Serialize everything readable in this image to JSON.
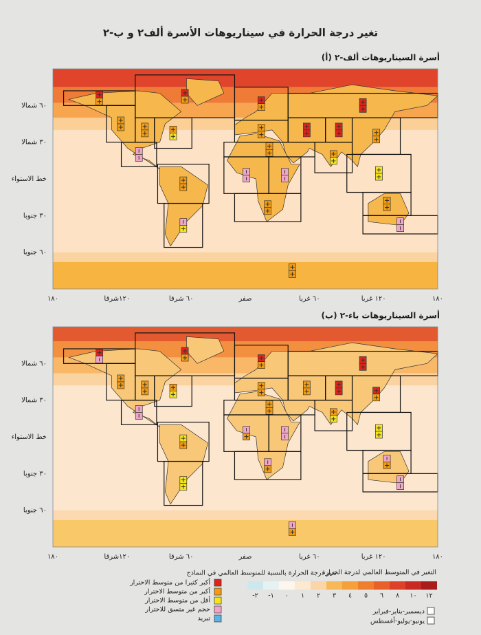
{
  "title": "تغير درجة الحرارة في سيناريوهات الأسرة ألف٢ و ب-٢",
  "panels": [
    {
      "title": "(أ) أسرة السيناريوهات ألف-٢"
    },
    {
      "title": "(ب) أسرة السيناريوهات باء-٢"
    }
  ],
  "axes": {
    "y_labels": [
      "٦٠ شمالا",
      "٣٠ شمالا",
      "خط الاستواء",
      "٣٠ جنوبا",
      "٦٠ جنوبا"
    ],
    "x_labels": [
      "١٨٠",
      "١٢٠شرقا",
      "٦٠ شرقا",
      "صفر",
      "٦٠ غربا",
      "١٢٠ غربا",
      "١٨٠"
    ]
  },
  "legend_models": {
    "title": "تغير درجة الحرارة بالنسبة للمتوسط العالمي في النماذج",
    "items": [
      {
        "label": "أكبر كثيرا من متوسط الاحترار",
        "color": "#e2231a"
      },
      {
        "label": "أكبر من متوسط الاحترار",
        "color": "#f39c12"
      },
      {
        "label": "أقل من متوسط الاحترار",
        "color": "#f7e51c"
      },
      {
        "label": "حجم غير متسق للاحترار",
        "color": "#f0a6c8"
      },
      {
        "label": "تبريد",
        "color": "#5ab4e5"
      }
    ]
  },
  "legend_scale": {
    "title": "التغير في المتوسط العالمي لدرجة الحرارة",
    "labels": [
      "-٢",
      "-١",
      "٠",
      "١",
      "٢",
      "٣",
      "٤",
      "٥",
      "٦",
      "٨",
      "١٠",
      "١٢"
    ],
    "colors": [
      "#cde8ec",
      "#e6f2f2",
      "#fdf6ec",
      "#fde8d0",
      "#fbd5a8",
      "#f8b85a",
      "#f5a03a",
      "#ef7f2c",
      "#e8602a",
      "#dd4128",
      "#c92a22",
      "#a81c1c"
    ]
  },
  "legend_seasons": [
    "ديسمبر-يناير-فبراير",
    "يونيو-يوليو-أغسطس"
  ]
}
